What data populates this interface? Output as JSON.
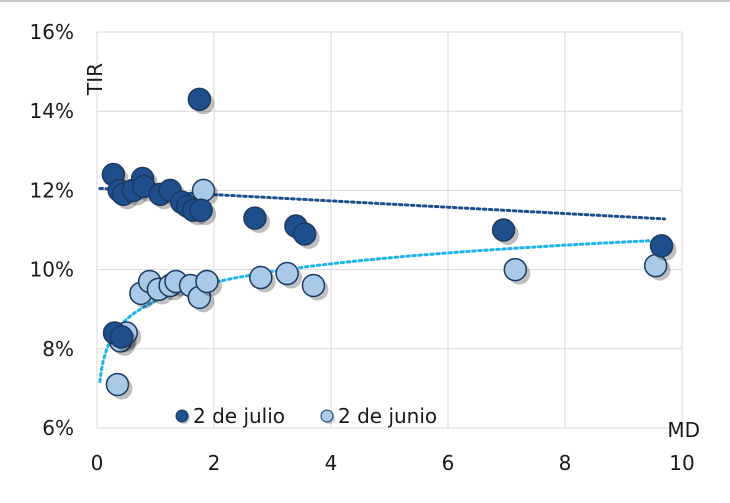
{
  "chart_data": {
    "type": "scatter",
    "title": "",
    "xlabel": "MD",
    "ylabel": "TIR",
    "xlim": [
      0,
      10
    ],
    "ylim": [
      0.06,
      0.16
    ],
    "x_ticks": [
      "0",
      "2",
      "4",
      "6",
      "8",
      "10"
    ],
    "y_ticks": [
      "6%",
      "8%",
      "10%",
      "12%",
      "14%",
      "16%"
    ],
    "grid": true,
    "legend_position": "bottom-left",
    "series": [
      {
        "name": "2 de julio",
        "color": "#1f4e8c",
        "points": [
          [
            0.28,
            0.124
          ],
          [
            0.38,
            0.12
          ],
          [
            0.45,
            0.119
          ],
          [
            0.62,
            0.12
          ],
          [
            0.78,
            0.123
          ],
          [
            0.8,
            0.121
          ],
          [
            1.08,
            0.119
          ],
          [
            1.25,
            0.12
          ],
          [
            1.45,
            0.117
          ],
          [
            1.55,
            0.116
          ],
          [
            1.65,
            0.115
          ],
          [
            1.75,
            0.143
          ],
          [
            1.78,
            0.115
          ],
          [
            2.7,
            0.113
          ],
          [
            3.4,
            0.111
          ],
          [
            3.55,
            0.109
          ],
          [
            6.95,
            0.11
          ],
          [
            9.65,
            0.106
          ],
          [
            0.3,
            0.084
          ],
          [
            0.42,
            0.083
          ]
        ],
        "trendline": {
          "style": "dotted",
          "color": "#1f4e8c",
          "x_range": [
            0.05,
            9.7
          ],
          "y_start": 0.1205,
          "y_end": 0.1128
        }
      },
      {
        "name": "2 de junio",
        "color": "#a9c9e6",
        "points": [
          [
            0.35,
            0.071
          ],
          [
            0.4,
            0.082
          ],
          [
            0.5,
            0.084
          ],
          [
            0.75,
            0.094
          ],
          [
            0.9,
            0.097
          ],
          [
            1.05,
            0.095
          ],
          [
            1.25,
            0.096
          ],
          [
            1.35,
            0.097
          ],
          [
            1.6,
            0.096
          ],
          [
            1.75,
            0.093
          ],
          [
            1.82,
            0.12
          ],
          [
            1.88,
            0.097
          ],
          [
            2.8,
            0.098
          ],
          [
            3.25,
            0.099
          ],
          [
            3.7,
            0.096
          ],
          [
            7.15,
            0.1
          ],
          [
            9.55,
            0.101
          ]
        ],
        "trendline": {
          "style": "dotted",
          "color": "#1fb5ea",
          "x_range": [
            0.05,
            9.7
          ],
          "fit": "logarithmic"
        }
      }
    ]
  }
}
